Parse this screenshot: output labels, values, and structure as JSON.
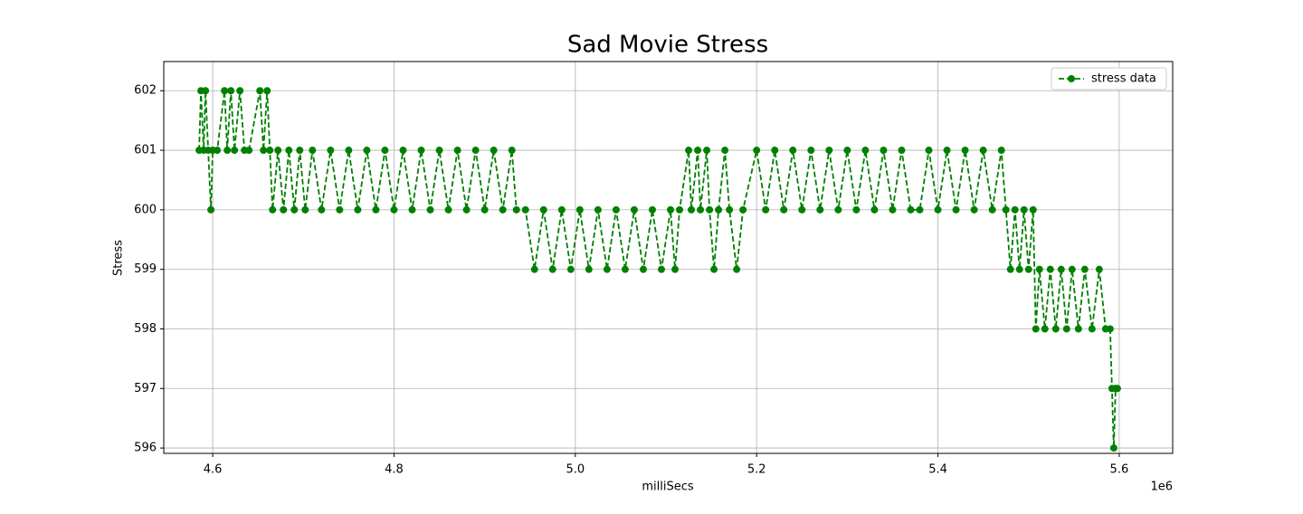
{
  "chart_data": {
    "type": "line",
    "title": "Sad Movie Stress",
    "x_label": "milliSecs",
    "y_label": "Stress",
    "x_offset_label": "1e6",
    "x": [
      4585000,
      4587000,
      4590000,
      4592000,
      4595000,
      4598000,
      4600000,
      4605000,
      4613000,
      4616000,
      4620000,
      4624000,
      4630000,
      4635000,
      4640000,
      4652000,
      4656000,
      4660000,
      4663000,
      4666000,
      4672000,
      4678000,
      4684000,
      4690000,
      4696000,
      4702000,
      4710000,
      4720000,
      4730000,
      4740000,
      4750000,
      4760000,
      4770000,
      4780000,
      4790000,
      4800000,
      4810000,
      4820000,
      4830000,
      4840000,
      4850000,
      4860000,
      4870000,
      4880000,
      4890000,
      4900000,
      4910000,
      4920000,
      4930000,
      4935000,
      4945000,
      4955000,
      4965000,
      4975000,
      4985000,
      4995000,
      5005000,
      5015000,
      5025000,
      5035000,
      5045000,
      5055000,
      5065000,
      5075000,
      5085000,
      5095000,
      5105000,
      5110000,
      5115000,
      5125000,
      5128000,
      5135000,
      5138000,
      5145000,
      5148000,
      5153000,
      5158000,
      5165000,
      5170000,
      5178000,
      5185000,
      5200000,
      5210000,
      5220000,
      5230000,
      5240000,
      5250000,
      5260000,
      5270000,
      5280000,
      5290000,
      5300000,
      5310000,
      5320000,
      5330000,
      5340000,
      5350000,
      5360000,
      5370000,
      5380000,
      5390000,
      5400000,
      5410000,
      5420000,
      5430000,
      5440000,
      5450000,
      5460000,
      5470000,
      5475000,
      5480000,
      5485000,
      5490000,
      5495000,
      5500000,
      5505000,
      5508000,
      5512000,
      5518000,
      5524000,
      5530000,
      5536000,
      5542000,
      5548000,
      5555000,
      5562000,
      5570000,
      5578000,
      5585000,
      5590000,
      5592000,
      5594000,
      5596000,
      5598000
    ],
    "series": [
      {
        "name": "stress data",
        "color": "#008000",
        "values": [
          601,
          602,
          601,
          602,
          601,
          600,
          601,
          601,
          602,
          601,
          602,
          601,
          602,
          601,
          601,
          602,
          601,
          602,
          601,
          600,
          601,
          600,
          601,
          600,
          601,
          600,
          601,
          600,
          601,
          600,
          601,
          600,
          601,
          600,
          601,
          600,
          601,
          600,
          601,
          600,
          601,
          600,
          601,
          600,
          601,
          600,
          601,
          600,
          601,
          600,
          600,
          599,
          600,
          599,
          600,
          599,
          600,
          599,
          600,
          599,
          600,
          599,
          600,
          599,
          600,
          599,
          600,
          599,
          600,
          601,
          600,
          601,
          600,
          601,
          600,
          599,
          600,
          601,
          600,
          599,
          600,
          601,
          600,
          601,
          600,
          601,
          600,
          601,
          600,
          601,
          600,
          601,
          600,
          601,
          600,
          601,
          600,
          601,
          600,
          600,
          601,
          600,
          601,
          600,
          601,
          600,
          601,
          600,
          601,
          600,
          599,
          600,
          599,
          600,
          599,
          600,
          598,
          599,
          598,
          599,
          598,
          599,
          598,
          599,
          598,
          599,
          598,
          599,
          598,
          598,
          597,
          596,
          597,
          597
        ]
      }
    ],
    "xlim": [
      4546000,
      5659000
    ],
    "xticks": [
      {
        "value": 4600000,
        "label": "4.6"
      },
      {
        "value": 4800000,
        "label": "4.8"
      },
      {
        "value": 5000000,
        "label": "5.0"
      },
      {
        "value": 5200000,
        "label": "5.2"
      },
      {
        "value": 5400000,
        "label": "5.4"
      },
      {
        "value": 5600000,
        "label": "5.6"
      }
    ],
    "ylim": [
      595.91,
      602.49
    ],
    "yticks": [
      596,
      597,
      598,
      599,
      600,
      601,
      602
    ],
    "grid": true,
    "legend": "upper right"
  }
}
